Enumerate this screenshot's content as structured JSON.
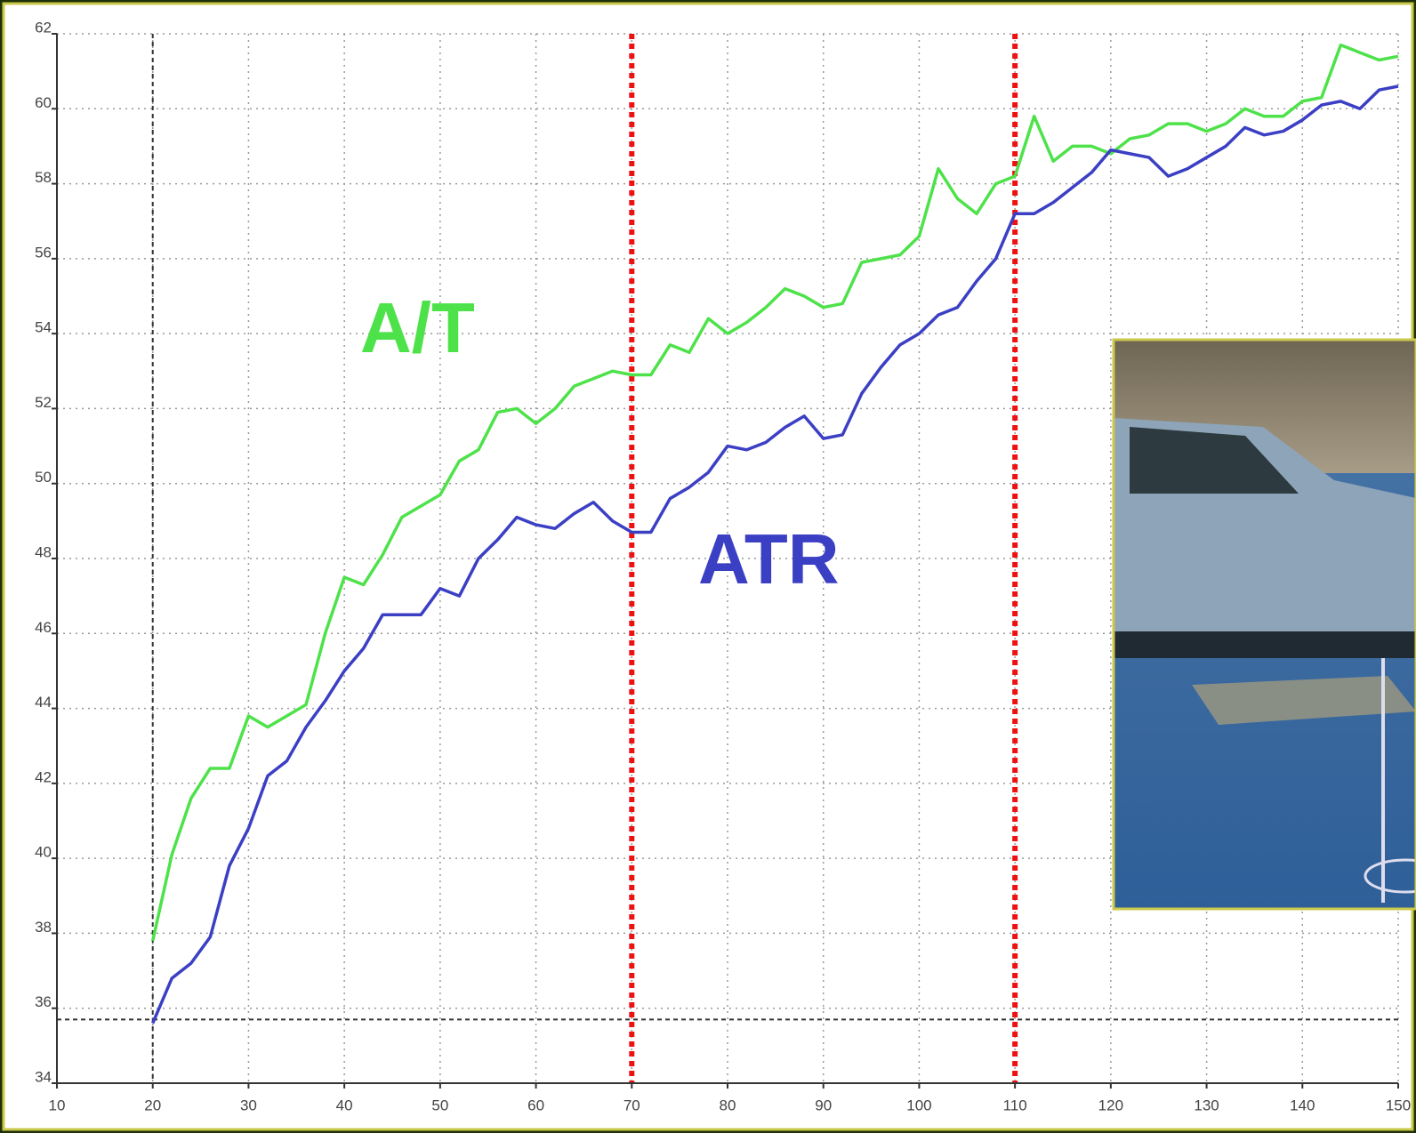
{
  "chart_data": {
    "type": "line",
    "x": [
      20,
      22,
      24,
      26,
      28,
      30,
      32,
      34,
      36,
      38,
      40,
      42,
      44,
      46,
      48,
      50,
      52,
      54,
      56,
      58,
      60,
      62,
      64,
      66,
      68,
      70,
      72,
      74,
      76,
      78,
      80,
      82,
      84,
      86,
      88,
      90,
      92,
      94,
      96,
      98,
      100,
      102,
      104,
      106,
      108,
      110,
      112,
      114,
      116,
      118,
      120,
      122,
      124,
      126,
      128,
      130,
      132,
      134,
      136,
      138,
      140,
      142,
      144,
      146,
      148,
      150
    ],
    "series": [
      {
        "name": "A/T",
        "color": "#4ee24a",
        "values": [
          37.8,
          40.1,
          41.6,
          42.4,
          42.4,
          43.8,
          43.5,
          43.8,
          44.1,
          46.0,
          47.5,
          47.3,
          48.1,
          49.1,
          49.4,
          49.7,
          50.6,
          50.9,
          51.9,
          52.0,
          51.6,
          52.0,
          52.6,
          52.8,
          53.0,
          52.9,
          52.9,
          53.7,
          53.5,
          54.4,
          54.0,
          54.3,
          54.7,
          55.2,
          55.0,
          54.7,
          54.8,
          55.9,
          56.0,
          56.1,
          56.6,
          58.4,
          57.6,
          57.2,
          58.0,
          58.2,
          59.8,
          58.6,
          59.0,
          59.0,
          58.8,
          59.2,
          59.3,
          59.6,
          59.6,
          59.4,
          59.6,
          60.0,
          59.8,
          59.8,
          60.2,
          60.3,
          61.7,
          61.5,
          61.3,
          61.4
        ]
      },
      {
        "name": "ATR",
        "color": "#3b3fc4",
        "values": [
          35.6,
          36.8,
          37.2,
          37.9,
          39.8,
          40.8,
          42.2,
          42.6,
          43.5,
          44.2,
          45.0,
          45.6,
          46.5,
          46.5,
          46.5,
          47.2,
          47.0,
          48.0,
          48.5,
          49.1,
          48.9,
          48.8,
          49.2,
          49.5,
          49.0,
          48.7,
          48.7,
          49.6,
          49.9,
          50.3,
          51.0,
          50.9,
          51.1,
          51.5,
          51.8,
          51.2,
          51.3,
          52.4,
          53.1,
          53.7,
          54.0,
          54.5,
          54.7,
          55.4,
          56.0,
          57.2,
          57.2,
          57.5,
          57.9,
          58.3,
          58.9,
          58.8,
          58.7,
          58.2,
          58.4,
          58.7,
          59.0,
          59.5,
          59.3,
          59.4,
          59.7,
          60.1,
          60.2,
          60.0,
          60.5,
          60.6
        ]
      }
    ],
    "xlim": [
      10,
      150
    ],
    "xticks": [
      10,
      20,
      30,
      40,
      50,
      60,
      70,
      80,
      90,
      100,
      110,
      120,
      130,
      140,
      150
    ],
    "ylim": [
      34,
      62
    ],
    "yticks": [
      34,
      36,
      38,
      40,
      42,
      44,
      46,
      48,
      50,
      52,
      54,
      56,
      58,
      60,
      62
    ],
    "grid": true,
    "reference_lines": {
      "x_red": [
        70,
        110
      ],
      "x_black": 20,
      "y_black": 35.7
    }
  }
}
